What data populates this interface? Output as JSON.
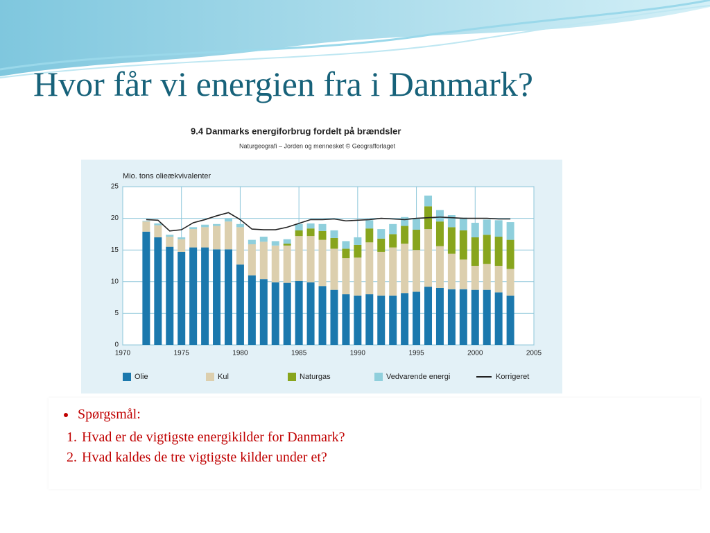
{
  "slide_title": "Hvor får vi energien fra i Danmark?",
  "bullet": "Spørgsmål:",
  "questions": [
    "Hvad er de vigtigste energikilder for Danmark?",
    "Hvad kaldes de tre vigtigste kilder under et?"
  ],
  "chart_data": {
    "type": "bar",
    "stacked": true,
    "title": "9.4  Danmarks energiforbrug fordelt på brændsler",
    "subtitle": "Naturgeografi – Jorden og mennesket  © Geografforlaget",
    "y_label": "Mio. tons olieækvivalenter",
    "x": [
      1972,
      1973,
      1974,
      1975,
      1976,
      1977,
      1978,
      1979,
      1980,
      1981,
      1982,
      1983,
      1984,
      1985,
      1986,
      1987,
      1988,
      1989,
      1990,
      1991,
      1992,
      1993,
      1994,
      1995,
      1996,
      1997,
      1998,
      1999,
      2000,
      2001,
      2002,
      2003
    ],
    "series": [
      {
        "name": "Olie",
        "color": "#1b78ad",
        "values": [
          17.9,
          17.0,
          15.5,
          14.7,
          15.4,
          15.4,
          15.1,
          15.1,
          12.7,
          11.0,
          10.4,
          9.9,
          9.8,
          10.1,
          9.9,
          9.3,
          8.7,
          8.0,
          7.8,
          8.0,
          7.8,
          7.8,
          8.2,
          8.4,
          9.2,
          9.0,
          8.8,
          8.8,
          8.7,
          8.7,
          8.3,
          7.8
        ]
      },
      {
        "name": "Kul",
        "color": "#dccfae",
        "values": [
          1.6,
          1.9,
          1.6,
          2.0,
          2.9,
          3.2,
          3.7,
          4.4,
          5.9,
          4.9,
          5.9,
          5.8,
          5.9,
          7.1,
          7.3,
          7.3,
          6.5,
          5.7,
          6.0,
          8.2,
          6.9,
          7.6,
          7.8,
          6.6,
          9.1,
          6.6,
          5.6,
          4.7,
          3.8,
          4.1,
          4.2,
          4.2
        ]
      },
      {
        "name": "Naturgas",
        "color": "#88a51d",
        "values": [
          0,
          0,
          0,
          0,
          0,
          0,
          0,
          0,
          0,
          0,
          0,
          0,
          0.3,
          0.9,
          1.2,
          1.4,
          1.7,
          1.5,
          2.0,
          2.2,
          2.1,
          2.1,
          2.8,
          3.2,
          3.6,
          3.9,
          4.2,
          4.6,
          4.5,
          4.6,
          4.6,
          4.6
        ]
      },
      {
        "name": "Vedvarende energi",
        "color": "#8fcfdc",
        "values": [
          0.1,
          0.3,
          0.3,
          0.3,
          0.3,
          0.4,
          0.3,
          0.5,
          0.5,
          0.7,
          0.8,
          0.7,
          0.7,
          1.0,
          0.8,
          1.1,
          1.2,
          1.2,
          1.2,
          1.3,
          1.5,
          1.6,
          1.4,
          1.7,
          1.7,
          1.8,
          1.9,
          2.0,
          2.3,
          2.4,
          2.6,
          2.8
        ]
      },
      {
        "name": "Korrigeret",
        "color": "#222222",
        "type": "line",
        "values": [
          19.8,
          19.7,
          18.0,
          18.2,
          19.3,
          19.8,
          20.4,
          20.9,
          19.8,
          18.3,
          18.2,
          18.2,
          18.6,
          19.2,
          19.8,
          19.8,
          19.9,
          19.6,
          19.7,
          19.8,
          20.0,
          19.9,
          19.8,
          20.0,
          20.1,
          20.2,
          20.1,
          20.0,
          20.0,
          20.0,
          19.9,
          19.9
        ]
      }
    ],
    "xlim": [
      1970,
      2005
    ],
    "xticks": [
      1970,
      1975,
      1980,
      1985,
      1990,
      1995,
      2000,
      2005
    ],
    "ylim": [
      0,
      25
    ],
    "yticks": [
      0,
      5,
      10,
      15,
      20,
      25
    ],
    "grid": true
  }
}
